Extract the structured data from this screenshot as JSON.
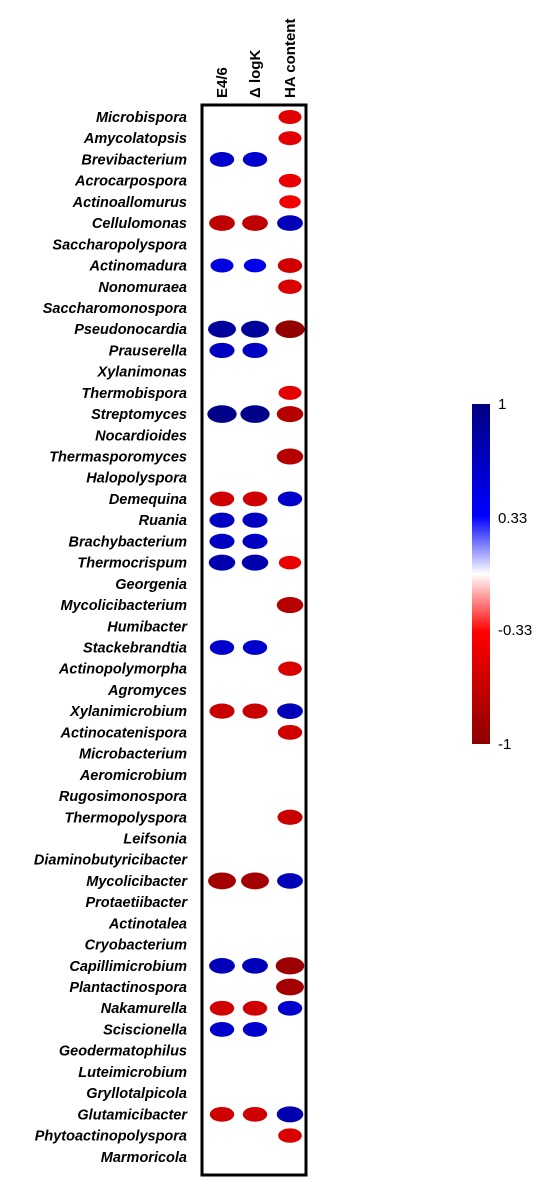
{
  "chart_data": {
    "type": "heatmap",
    "columns": [
      "E4/6",
      "Δ logK",
      "HA content"
    ],
    "rows": [
      "Microbispora",
      "Amycolatopsis",
      "Brevibacterium",
      "Acrocarpospora",
      "Actinoallomurus",
      "Cellulomonas",
      "Saccharopolyspora",
      "Actinomadura",
      "Nonomuraea",
      "Saccharomonospora",
      "Pseudonocardia",
      "Prauserella",
      "Xylanimonas",
      "Thermobispora",
      "Streptomyces",
      "Nocardioides",
      "Thermasporomyces",
      "Halopolyspora",
      "Demequina",
      "Ruania",
      "Brachybacterium",
      "Thermocrispum",
      "Georgenia",
      "Mycolicibacterium",
      "Humibacter",
      "Stackebrandtia",
      "Actinopolymorpha",
      "Agromyces",
      "Xylanimicrobium",
      "Actinocatenispora",
      "Microbacterium",
      "Aeromicrobium",
      "Rugosimonospora",
      "Thermopolyspora",
      "Leifsonia",
      "Diaminobutyricibacter",
      "Mycolicibacter",
      "Protaetiibacter",
      "Actinotalea",
      "Cryobacterium",
      "Capillimicrobium",
      "Plantactinospora",
      "Nakamurella",
      "Sciscionella",
      "Geodermatophilus",
      "Luteimicrobium",
      "Gryllotalpicola",
      "Glutamicibacter",
      "Phytoactinopolyspora",
      "Marmoricola"
    ],
    "values": [
      [
        null,
        null,
        -0.5
      ],
      [
        null,
        null,
        -0.5
      ],
      [
        0.6,
        0.6,
        null
      ],
      [
        null,
        null,
        -0.45
      ],
      [
        null,
        null,
        -0.4
      ],
      [
        -0.7,
        -0.7,
        0.7
      ],
      [
        null,
        null,
        null
      ],
      [
        0.5,
        0.45,
        -0.6
      ],
      [
        null,
        null,
        -0.55
      ],
      [
        null,
        null,
        null
      ],
      [
        0.85,
        0.85,
        -0.95
      ],
      [
        0.65,
        0.65,
        null
      ],
      [
        null,
        null,
        null
      ],
      [
        null,
        null,
        -0.5
      ],
      [
        0.95,
        0.95,
        -0.75
      ],
      [
        null,
        null,
        null
      ],
      [
        null,
        null,
        -0.75
      ],
      [
        null,
        null,
        null
      ],
      [
        -0.6,
        -0.6,
        0.6
      ],
      [
        0.65,
        0.65,
        null
      ],
      [
        0.65,
        0.65,
        null
      ],
      [
        0.75,
        0.75,
        -0.45
      ],
      [
        null,
        null,
        null
      ],
      [
        null,
        null,
        -0.75
      ],
      [
        null,
        null,
        null
      ],
      [
        0.6,
        0.6,
        null
      ],
      [
        null,
        null,
        -0.55
      ],
      [
        null,
        null,
        null
      ],
      [
        -0.65,
        -0.65,
        0.7
      ],
      [
        null,
        null,
        -0.6
      ],
      [
        null,
        null,
        null
      ],
      [
        null,
        null,
        null
      ],
      [
        null,
        null,
        null
      ],
      [
        null,
        null,
        -0.65
      ],
      [
        null,
        null,
        null
      ],
      [
        null,
        null,
        null
      ],
      [
        -0.85,
        -0.85,
        0.7
      ],
      [
        null,
        null,
        null
      ],
      [
        null,
        null,
        null
      ],
      [
        null,
        null,
        null
      ],
      [
        0.7,
        0.7,
        -0.9
      ],
      [
        null,
        null,
        -0.85
      ],
      [
        -0.6,
        -0.6,
        0.6
      ],
      [
        0.6,
        0.6,
        null
      ],
      [
        null,
        null,
        null
      ],
      [
        null,
        null,
        null
      ],
      [
        null,
        null,
        null
      ],
      [
        -0.6,
        -0.6,
        0.75
      ],
      [
        null,
        null,
        -0.55
      ],
      [
        null,
        null,
        null
      ]
    ],
    "colorbar": {
      "ticks": [
        "1",
        "0.33",
        "-0.33",
        "-1"
      ],
      "tick_values": [
        1,
        0.33,
        -0.33,
        -1
      ],
      "min_color": "#8b0000",
      "neg_color": "#ff0000",
      "zero_color": "#ffffff",
      "pos_color": "#0000ff",
      "max_color": "#000080"
    }
  }
}
